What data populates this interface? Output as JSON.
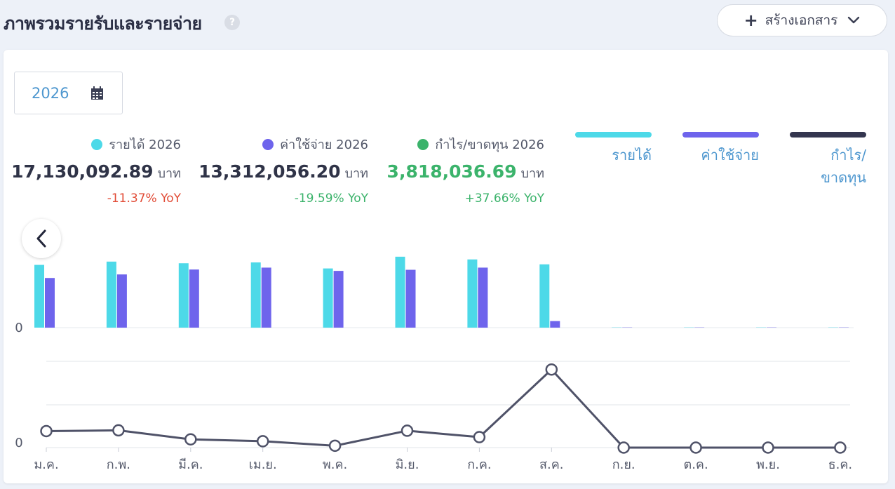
{
  "header": {
    "title": "ภาพรวมรายรับและรายจ่าย",
    "help_icon": "?",
    "create_button": "สร้างเอกสาร",
    "create_icon": "+",
    "dropdown_icon": "⌄"
  },
  "filter": {
    "year": "2026"
  },
  "summary": [
    {
      "label": "รายได้ 2026",
      "amount": "17,130,092.89",
      "unit": "บาท",
      "yoy": "-11.37% YoY",
      "dot_color": "#4dd9e8",
      "amount_color": "#2f3347",
      "yoy_color": "#e14b36"
    },
    {
      "label": "ค่าใช้จ่าย 2026",
      "amount": "13,312,056.20",
      "unit": "บาท",
      "yoy": "-19.59% YoY",
      "dot_color": "#6e64ec",
      "amount_color": "#2f3347",
      "yoy_color": "#3bb36b"
    },
    {
      "label": "กำไร/ขาดทุน 2026",
      "amount": "3,818,036.69",
      "unit": "บาท",
      "yoy": "+37.66% YoY",
      "dot_color": "#3bb36b",
      "amount_color": "#3bb36b",
      "yoy_color": "#3bb36b"
    }
  ],
  "legend": [
    {
      "label": "รายได้",
      "color": "#4dd9e8"
    },
    {
      "label": "ค่าใช้จ่าย",
      "color": "#6e64ec"
    },
    {
      "label": "กำไร/ขาดทุน",
      "color": "#34364f"
    }
  ],
  "chart_data": [
    {
      "type": "bar",
      "categories": [
        "ม.ค.",
        "ก.พ.",
        "มี.ค.",
        "เม.ย.",
        "พ.ค.",
        "มิ.ย.",
        "ก.ค.",
        "ส.ค.",
        "ก.ย.",
        "ต.ค.",
        "พ.ย.",
        "ธ.ค."
      ],
      "series": [
        {
          "name": "รายได้",
          "color": "#4dd9e8",
          "values": [
            2.3,
            2.42,
            2.36,
            2.39,
            2.17,
            2.6,
            2.5,
            2.32,
            0.02,
            0.02,
            0.02,
            0.02
          ]
        },
        {
          "name": "ค่าใช้จ่าย",
          "color": "#6e64ec",
          "values": [
            1.82,
            1.95,
            2.13,
            2.2,
            2.08,
            2.12,
            2.2,
            0.24,
            0.02,
            0.02,
            0.02,
            0.02
          ]
        }
      ],
      "ytick_labels": [
        "0"
      ],
      "ylim": [
        0,
        2.7
      ]
    },
    {
      "type": "line",
      "categories": [
        "ม.ค.",
        "ก.พ.",
        "มี.ค.",
        "เม.ย.",
        "พ.ค.",
        "มิ.ย.",
        "ก.ค.",
        "ส.ค.",
        "ก.ย.",
        "ต.ค.",
        "พ.ย.",
        "ธ.ค."
      ],
      "series": [
        {
          "name": "กำไร/ขาดทุน",
          "color": "#4f5268",
          "values": [
            0.44,
            0.46,
            0.22,
            0.17,
            0.05,
            0.45,
            0.28,
            2.08,
            0.0,
            0.0,
            0.0,
            0.0
          ]
        }
      ],
      "ytick_labels": [
        "0"
      ],
      "ylim": [
        0,
        2.35
      ],
      "grid": true
    }
  ]
}
